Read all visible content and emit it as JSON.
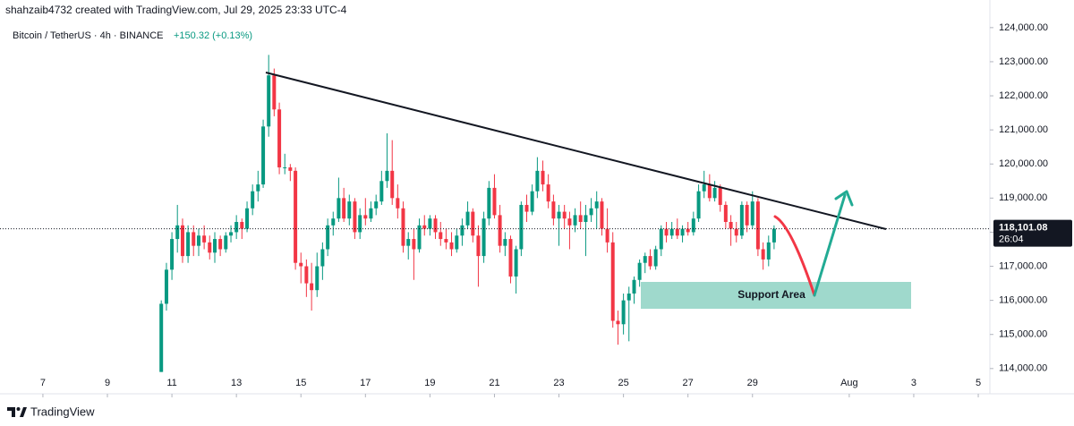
{
  "chart_data": {
    "type": "candlestick",
    "attribution": "shahzaib4732 created with TradingView.com, Jul 29, 2025 23:33 UTC-4",
    "title": "Bitcoin / TetherUS · 4h · BINANCE",
    "change_label": "+150.32 (+0.13%)",
    "annotation": "Support Area",
    "footer": "TradingView",
    "up_color": "#089981",
    "down_color": "#f23645",
    "xlim": [
      5.67,
      36.36
    ],
    "xticks": [
      7,
      9,
      11,
      13,
      15,
      17,
      19,
      21,
      23,
      25,
      27,
      29,
      {
        "value": 32,
        "label": "Aug"
      },
      {
        "value": 34,
        "label": "3"
      },
      {
        "value": 36,
        "label": "5"
      }
    ],
    "ylim": [
      113260,
      124810
    ],
    "yticks": [
      {
        "value": 114000,
        "label": "114,000.00"
      },
      {
        "value": 115000,
        "label": "115,000.00"
      },
      {
        "value": 116000,
        "label": "116,000.00"
      },
      {
        "value": 117000,
        "label": "117,000.00"
      },
      {
        "value": 118000,
        "label": "118,000.00"
      },
      {
        "value": 119000,
        "label": "119,000.00"
      },
      {
        "value": 120000,
        "label": "120,000.00"
      },
      {
        "value": 121000,
        "label": "121,000.00"
      },
      {
        "value": 122000,
        "label": "122,000.00"
      },
      {
        "value": 123000,
        "label": "123,000.00"
      },
      {
        "value": 124000,
        "label": "124,000.00"
      }
    ],
    "price_line": {
      "value": 118101.08,
      "label": "118,101.08"
    },
    "countdown": "26:04",
    "x": [
      10.67,
      10.83,
      11,
      11.17,
      11.33,
      11.5,
      11.67,
      11.83,
      12,
      12.17,
      12.33,
      12.5,
      12.67,
      12.83,
      13,
      13.17,
      13.33,
      13.5,
      13.67,
      13.83,
      14,
      14.17,
      14.33,
      14.5,
      14.67,
      14.83,
      15,
      15.17,
      15.33,
      15.5,
      15.67,
      15.83,
      16,
      16.17,
      16.33,
      16.5,
      16.67,
      16.83,
      17,
      17.17,
      17.33,
      17.5,
      17.67,
      17.83,
      18,
      18.17,
      18.33,
      18.5,
      18.67,
      18.83,
      19,
      19.17,
      19.33,
      19.5,
      19.67,
      19.83,
      20,
      20.17,
      20.33,
      20.5,
      20.67,
      20.83,
      21,
      21.17,
      21.33,
      21.5,
      21.67,
      21.83,
      22,
      22.17,
      22.33,
      22.5,
      22.67,
      22.83,
      23,
      23.17,
      23.33,
      23.5,
      23.67,
      23.83,
      24,
      24.17,
      24.33,
      24.5,
      24.67,
      24.83,
      25,
      25.17,
      25.33,
      25.5,
      25.67,
      25.83,
      26,
      26.17,
      26.33,
      26.5,
      26.67,
      26.83,
      27,
      27.17,
      27.33,
      27.5,
      27.67,
      27.83,
      28,
      28.17,
      28.33,
      28.5,
      28.67,
      28.83,
      29,
      29.17,
      29.33,
      29.5,
      29.67
    ],
    "ohlc": [
      [
        113900,
        116000,
        113900,
        115900
      ],
      [
        115900,
        117100,
        115700,
        116900
      ],
      [
        116900,
        118000,
        116600,
        117800
      ],
      [
        117800,
        118800,
        117400,
        118200
      ],
      [
        118200,
        118400,
        117100,
        117300
      ],
      [
        117300,
        118200,
        117100,
        118000
      ],
      [
        118000,
        118200,
        117300,
        117600
      ],
      [
        117600,
        118100,
        117300,
        117900
      ],
      [
        117900,
        118200,
        117500,
        117700
      ],
      [
        117700,
        117900,
        117200,
        117400
      ],
      [
        117400,
        118000,
        117100,
        117800
      ],
      [
        117800,
        117900,
        117300,
        117500
      ],
      [
        117500,
        118000,
        117400,
        117900
      ],
      [
        117900,
        118200,
        117700,
        118000
      ],
      [
        118000,
        118500,
        117800,
        118300
      ],
      [
        118300,
        118400,
        117800,
        118100
      ],
      [
        118100,
        118900,
        118000,
        118700
      ],
      [
        118700,
        119400,
        118500,
        119200
      ],
      [
        119200,
        119800,
        118900,
        119400
      ],
      [
        119400,
        121300,
        119300,
        121100
      ],
      [
        121100,
        123200,
        120800,
        122600
      ],
      [
        122600,
        122800,
        121400,
        121600
      ],
      [
        121600,
        121800,
        119700,
        119900
      ],
      [
        119900,
        120300,
        119700,
        119900
      ],
      [
        119900,
        120000,
        119500,
        119800
      ],
      [
        119800,
        119900,
        116900,
        117100
      ],
      [
        117100,
        117400,
        116500,
        117000
      ],
      [
        117000,
        117200,
        116100,
        116500
      ],
      [
        116500,
        117100,
        115700,
        116300
      ],
      [
        116300,
        117400,
        116100,
        117000
      ],
      [
        117000,
        117700,
        116600,
        117500
      ],
      [
        117500,
        118400,
        117300,
        118200
      ],
      [
        118200,
        118600,
        117900,
        118400
      ],
      [
        118400,
        119600,
        118300,
        119000
      ],
      [
        119000,
        119300,
        118300,
        118400
      ],
      [
        118400,
        119100,
        118200,
        118900
      ],
      [
        118900,
        119000,
        117800,
        118000
      ],
      [
        118000,
        118700,
        117800,
        118500
      ],
      [
        118500,
        119000,
        118200,
        118400
      ],
      [
        118400,
        118900,
        118300,
        118700
      ],
      [
        118700,
        119100,
        118500,
        118900
      ],
      [
        118900,
        119800,
        118800,
        119500
      ],
      [
        119500,
        120900,
        119300,
        119800
      ],
      [
        119800,
        120700,
        118800,
        119000
      ],
      [
        119000,
        119400,
        118400,
        118700
      ],
      [
        118700,
        118900,
        117400,
        117600
      ],
      [
        117600,
        118000,
        117200,
        117800
      ],
      [
        117800,
        118100,
        116600,
        117500
      ],
      [
        117500,
        118400,
        117400,
        118200
      ],
      [
        118200,
        118500,
        117900,
        118100
      ],
      [
        118100,
        118500,
        117900,
        118400
      ],
      [
        118400,
        118500,
        117800,
        118000
      ],
      [
        118000,
        118300,
        117600,
        117800
      ],
      [
        117800,
        118100,
        117500,
        117700
      ],
      [
        117700,
        118000,
        117300,
        117500
      ],
      [
        117500,
        118100,
        117400,
        117900
      ],
      [
        117900,
        118400,
        117600,
        118200
      ],
      [
        118200,
        118900,
        118100,
        118600
      ],
      [
        118600,
        118700,
        117700,
        117900
      ],
      [
        117900,
        118200,
        116400,
        117300
      ],
      [
        117300,
        118600,
        117100,
        118400
      ],
      [
        118400,
        119500,
        118200,
        119300
      ],
      [
        119300,
        119700,
        118400,
        118500
      ],
      [
        118500,
        118800,
        117400,
        117600
      ],
      [
        117600,
        118000,
        117300,
        117800
      ],
      [
        117800,
        117900,
        116500,
        116700
      ],
      [
        116700,
        117600,
        116200,
        117500
      ],
      [
        117500,
        118900,
        117300,
        118800
      ],
      [
        118800,
        119100,
        118300,
        118600
      ],
      [
        118600,
        119400,
        118500,
        119200
      ],
      [
        119200,
        120200,
        119000,
        119800
      ],
      [
        119800,
        120100,
        119200,
        119400
      ],
      [
        119400,
        119700,
        118700,
        118900
      ],
      [
        118900,
        119100,
        118200,
        118400
      ],
      [
        118400,
        118800,
        117600,
        118600
      ],
      [
        118600,
        118800,
        118100,
        118400
      ],
      [
        118400,
        118600,
        117500,
        118200
      ],
      [
        118200,
        118700,
        118000,
        118500
      ],
      [
        118500,
        118900,
        118100,
        118300
      ],
      [
        118300,
        118800,
        117300,
        118500
      ],
      [
        118500,
        119000,
        118300,
        118700
      ],
      [
        118700,
        119200,
        118100,
        118900
      ],
      [
        118900,
        119000,
        117900,
        118100
      ],
      [
        118100,
        118700,
        117400,
        117700
      ],
      [
        117700,
        118000,
        115200,
        115400
      ],
      [
        115400,
        115700,
        114700,
        115300
      ],
      [
        115300,
        116200,
        115000,
        116000
      ],
      [
        116000,
        116400,
        114800,
        116200
      ],
      [
        116200,
        116700,
        115900,
        116600
      ],
      [
        116600,
        117200,
        116400,
        117100
      ],
      [
        117100,
        117400,
        116800,
        117300
      ],
      [
        117300,
        117500,
        116900,
        117000
      ],
      [
        117000,
        117600,
        116900,
        117500
      ],
      [
        117500,
        118200,
        117300,
        118100
      ],
      [
        118100,
        118300,
        117700,
        117900
      ],
      [
        117900,
        118300,
        117800,
        118100
      ],
      [
        118100,
        118400,
        117800,
        117900
      ],
      [
        117900,
        118200,
        117700,
        118100
      ],
      [
        118100,
        118300,
        117900,
        118000
      ],
      [
        118000,
        118600,
        117900,
        118400
      ],
      [
        118400,
        119400,
        118300,
        119200
      ],
      [
        119200,
        119800,
        119000,
        119400
      ],
      [
        119400,
        119700,
        118900,
        119000
      ],
      [
        119000,
        119500,
        118900,
        119300
      ],
      [
        119300,
        119400,
        118600,
        118800
      ],
      [
        118800,
        118900,
        118100,
        118300
      ],
      [
        118300,
        118500,
        117600,
        118100
      ],
      [
        118100,
        118300,
        117700,
        117900
      ],
      [
        117900,
        118900,
        117800,
        118800
      ],
      [
        118800,
        118900,
        118000,
        118200
      ],
      [
        118200,
        119200,
        118100,
        118900
      ],
      [
        118900,
        119000,
        117300,
        117500
      ],
      [
        117500,
        117700,
        116900,
        117200
      ],
      [
        117200,
        117900,
        117000,
        117700
      ],
      [
        117700,
        118200,
        117500,
        118101.08
      ]
    ]
  }
}
